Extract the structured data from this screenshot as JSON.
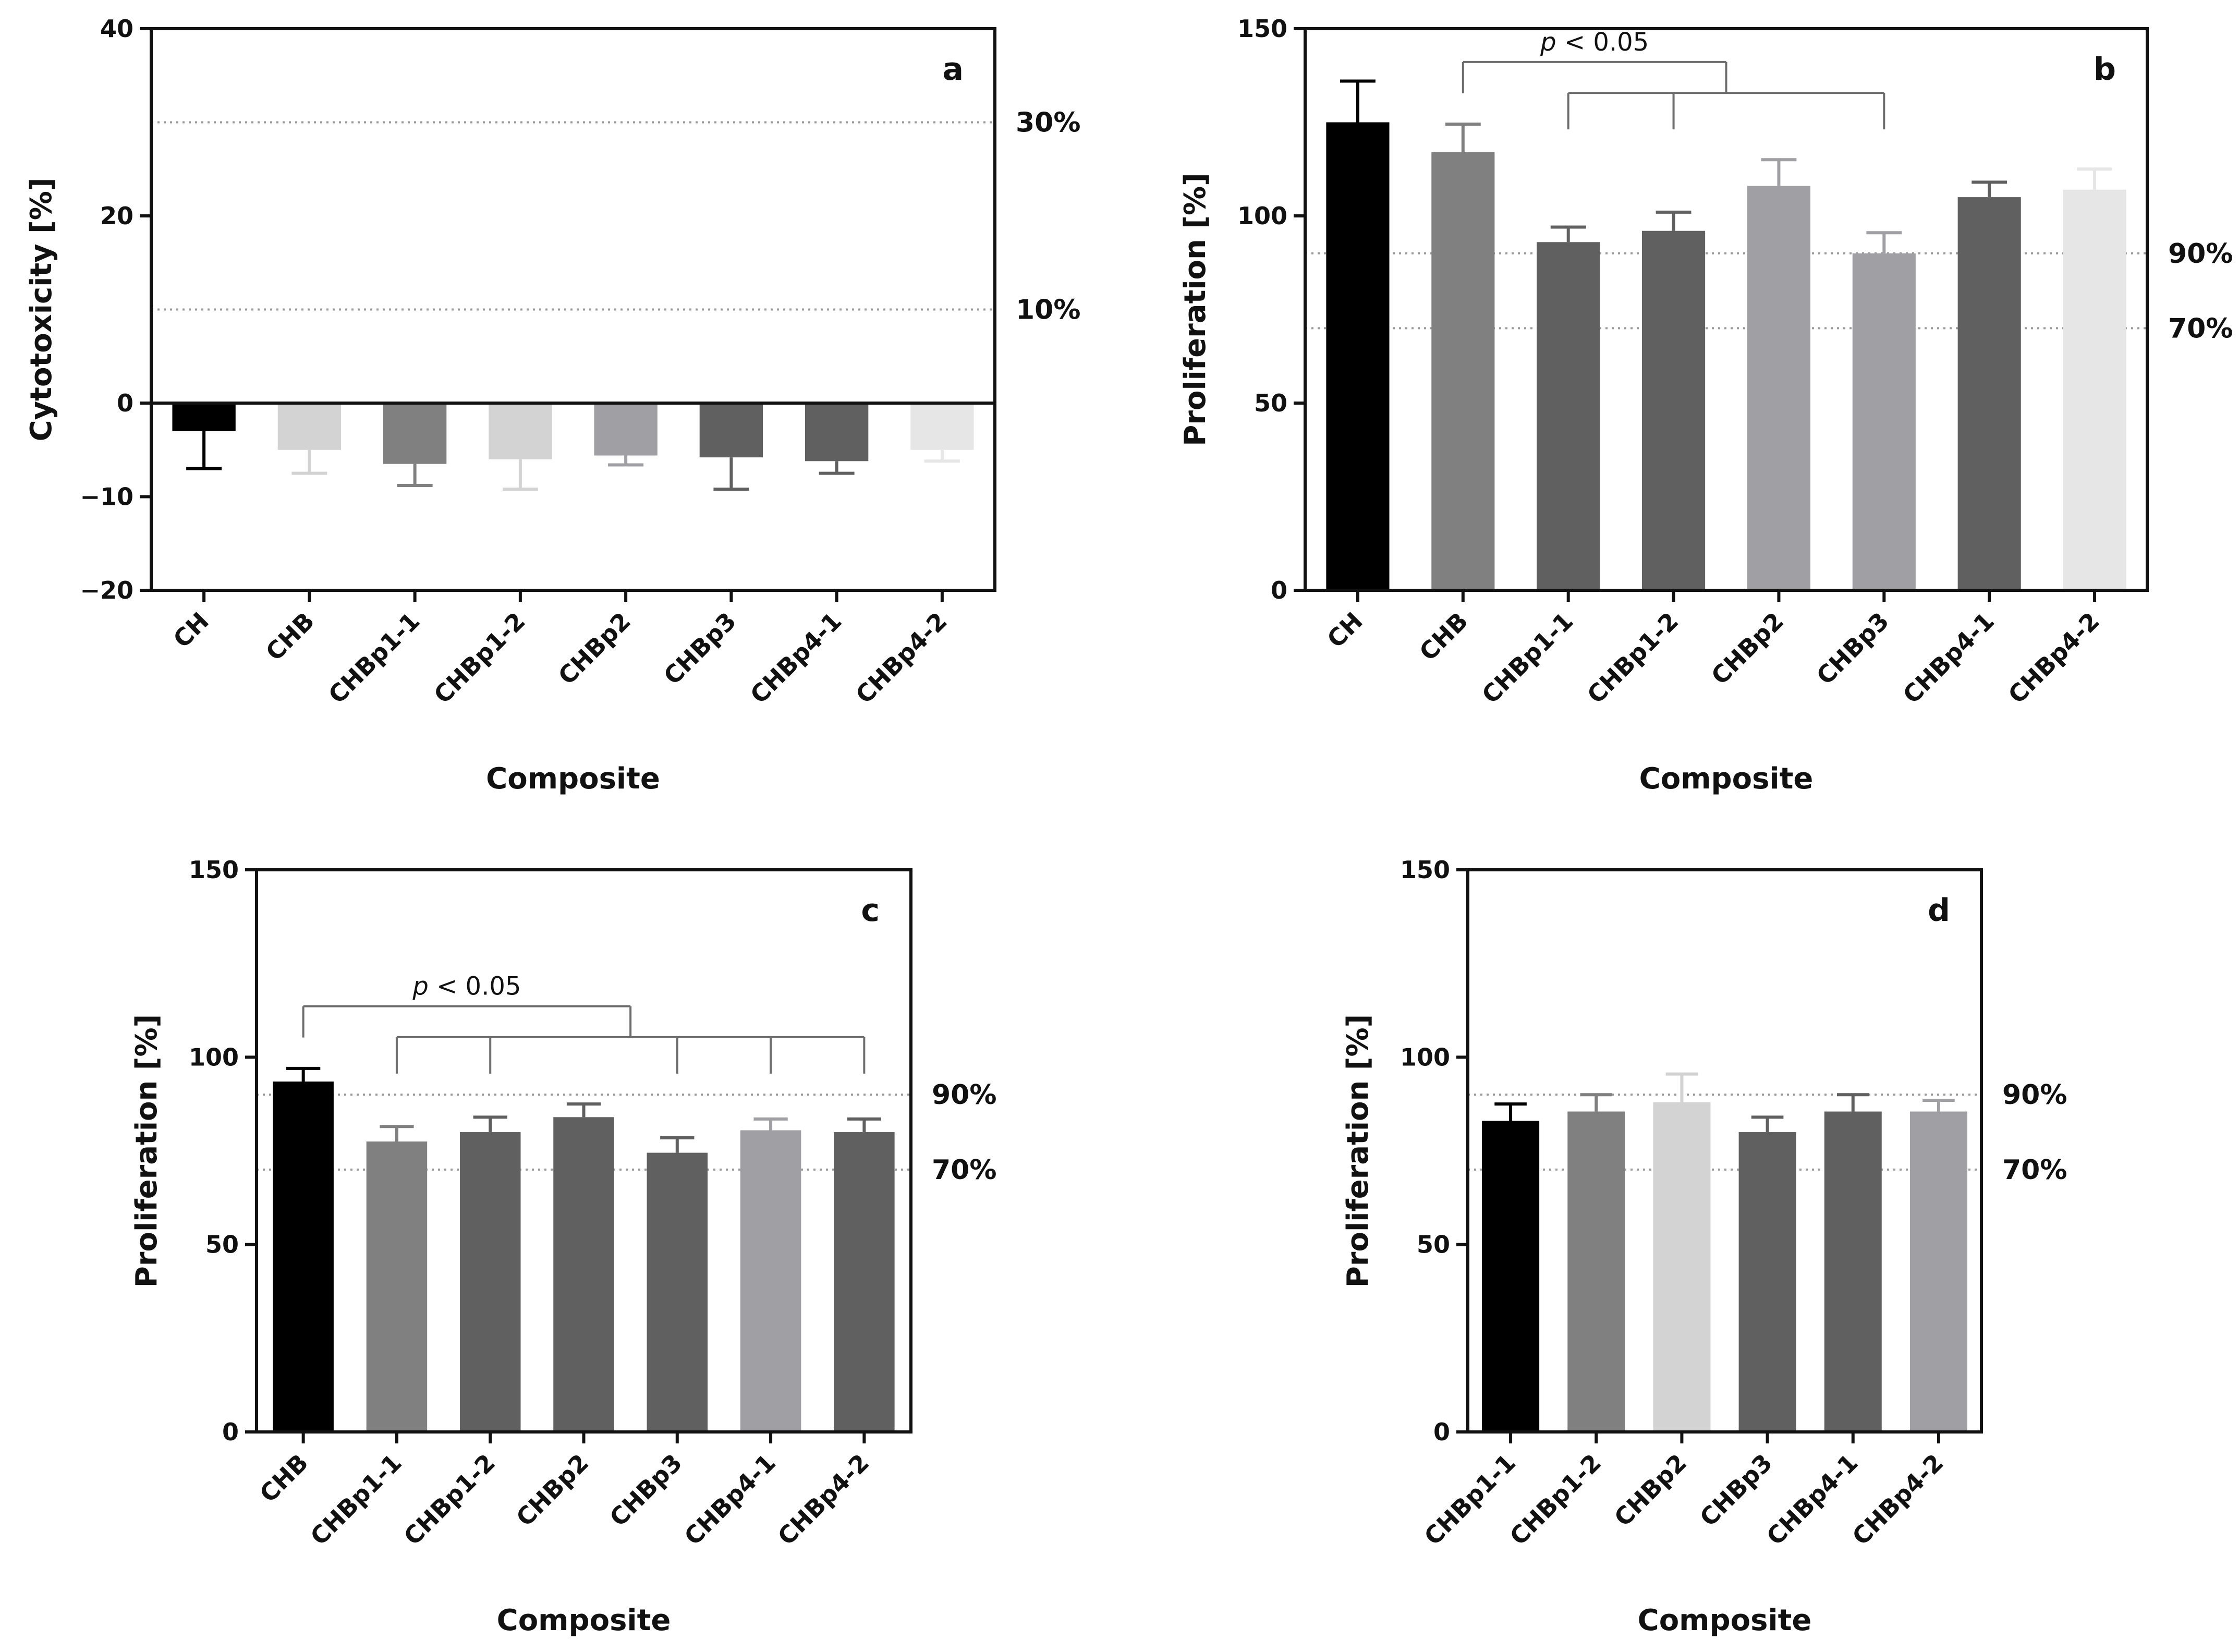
{
  "chart_data": [
    {
      "panel": "a",
      "type": "bar",
      "title": "",
      "xlabel": "Composite",
      "ylabel": "Cytotoxicity [%]",
      "ylim": [
        -20,
        40
      ],
      "yticks": [
        -20,
        -10,
        0,
        20,
        40
      ],
      "ytick_labels": [
        "−20",
        "−10",
        "0",
        "20",
        "40"
      ],
      "categories": [
        "CH",
        "CHB",
        "CHBp1-1",
        "CHBp1-2",
        "CHBp2",
        "CHBp3",
        "CHBp4-1",
        "CHBp4-2"
      ],
      "values": [
        -3,
        -5,
        -6.5,
        -6,
        -5.6,
        -5.8,
        -6.2,
        -5
      ],
      "errors": [
        4,
        2.5,
        2.3,
        3.2,
        1,
        3.4,
        1.3,
        1.2
      ],
      "colors": [
        "#000000",
        "#d3d3d3",
        "#808080",
        "#d3d3d3",
        "#a0a0a4",
        "#606060",
        "#606060",
        "#e6e6e6"
      ],
      "reference_lines": [
        {
          "value": 30,
          "label": "30%"
        },
        {
          "value": 10,
          "label": "10%"
        }
      ],
      "significance": []
    },
    {
      "panel": "b",
      "type": "bar",
      "title": "",
      "xlabel": "Composite",
      "ylabel": "Proliferation [%]",
      "ylim": [
        0,
        150
      ],
      "yticks": [
        0,
        50,
        100,
        150
      ],
      "ytick_labels": [
        "0",
        "50",
        "100",
        "150"
      ],
      "categories": [
        "CH",
        "CHB",
        "CHBp1-1",
        "CHBp1-2",
        "CHBp2",
        "CHBp3",
        "CHBp4-1",
        "CHBp4-2"
      ],
      "values": [
        125,
        117,
        93,
        96,
        108,
        90,
        105,
        107
      ],
      "errors": [
        11,
        7.5,
        4,
        5,
        7,
        5.5,
        4,
        5.5
      ],
      "colors": [
        "#000000",
        "#808080",
        "#606060",
        "#606060",
        "#a0a0a4",
        "#a0a0a4",
        "#606060",
        "#e6e6e6"
      ],
      "reference_lines": [
        {
          "value": 90,
          "label": "90%"
        },
        {
          "value": 70,
          "label": "70%"
        }
      ],
      "significance": [
        {
          "label": "p < 0.05",
          "from": 1,
          "to": [
            2,
            3,
            5
          ]
        }
      ]
    },
    {
      "panel": "c",
      "type": "bar",
      "title": "",
      "xlabel": "Composite",
      "ylabel": "Proliferation [%]",
      "ylim": [
        0,
        150
      ],
      "yticks": [
        0,
        50,
        100,
        150
      ],
      "ytick_labels": [
        "0",
        "50",
        "100",
        "150"
      ],
      "categories": [
        "CHB",
        "CHBp1-1",
        "CHBp1-2",
        "CHBp2",
        "CHBp3",
        "CHBp4-1",
        "CHBp4-2"
      ],
      "values": [
        93.5,
        77.5,
        80,
        84,
        74.5,
        80.5,
        80
      ],
      "errors": [
        3.5,
        4,
        4,
        3.5,
        4,
        3,
        3.5
      ],
      "colors": [
        "#000000",
        "#808080",
        "#606060",
        "#606060",
        "#606060",
        "#a0a0a4",
        "#606060"
      ],
      "reference_lines": [
        {
          "value": 90,
          "label": "90%"
        },
        {
          "value": 70,
          "label": "70%"
        }
      ],
      "significance": [
        {
          "label": "p < 0.05",
          "from": 0,
          "to": [
            1,
            2,
            4,
            5,
            6
          ]
        }
      ]
    },
    {
      "panel": "d",
      "type": "bar",
      "title": "",
      "xlabel": "Composite",
      "ylabel": "Proliferation [%]",
      "ylim": [
        0,
        150
      ],
      "yticks": [
        0,
        50,
        100,
        150
      ],
      "ytick_labels": [
        "0",
        "50",
        "100",
        "150"
      ],
      "categories": [
        "CHBp1-1",
        "CHBp1-2",
        "CHBp2",
        "CHBp3",
        "CHBp4-1",
        "CHBp4-2"
      ],
      "values": [
        83,
        85.5,
        88,
        80,
        85.5,
        85.5
      ],
      "errors": [
        4.5,
        4.5,
        7.5,
        4,
        4.5,
        3
      ],
      "colors": [
        "#000000",
        "#808080",
        "#d3d3d3",
        "#606060",
        "#606060",
        "#a0a0a4"
      ],
      "reference_lines": [
        {
          "value": 90,
          "label": "90%"
        },
        {
          "value": 70,
          "label": "70%"
        }
      ],
      "significance": []
    }
  ]
}
